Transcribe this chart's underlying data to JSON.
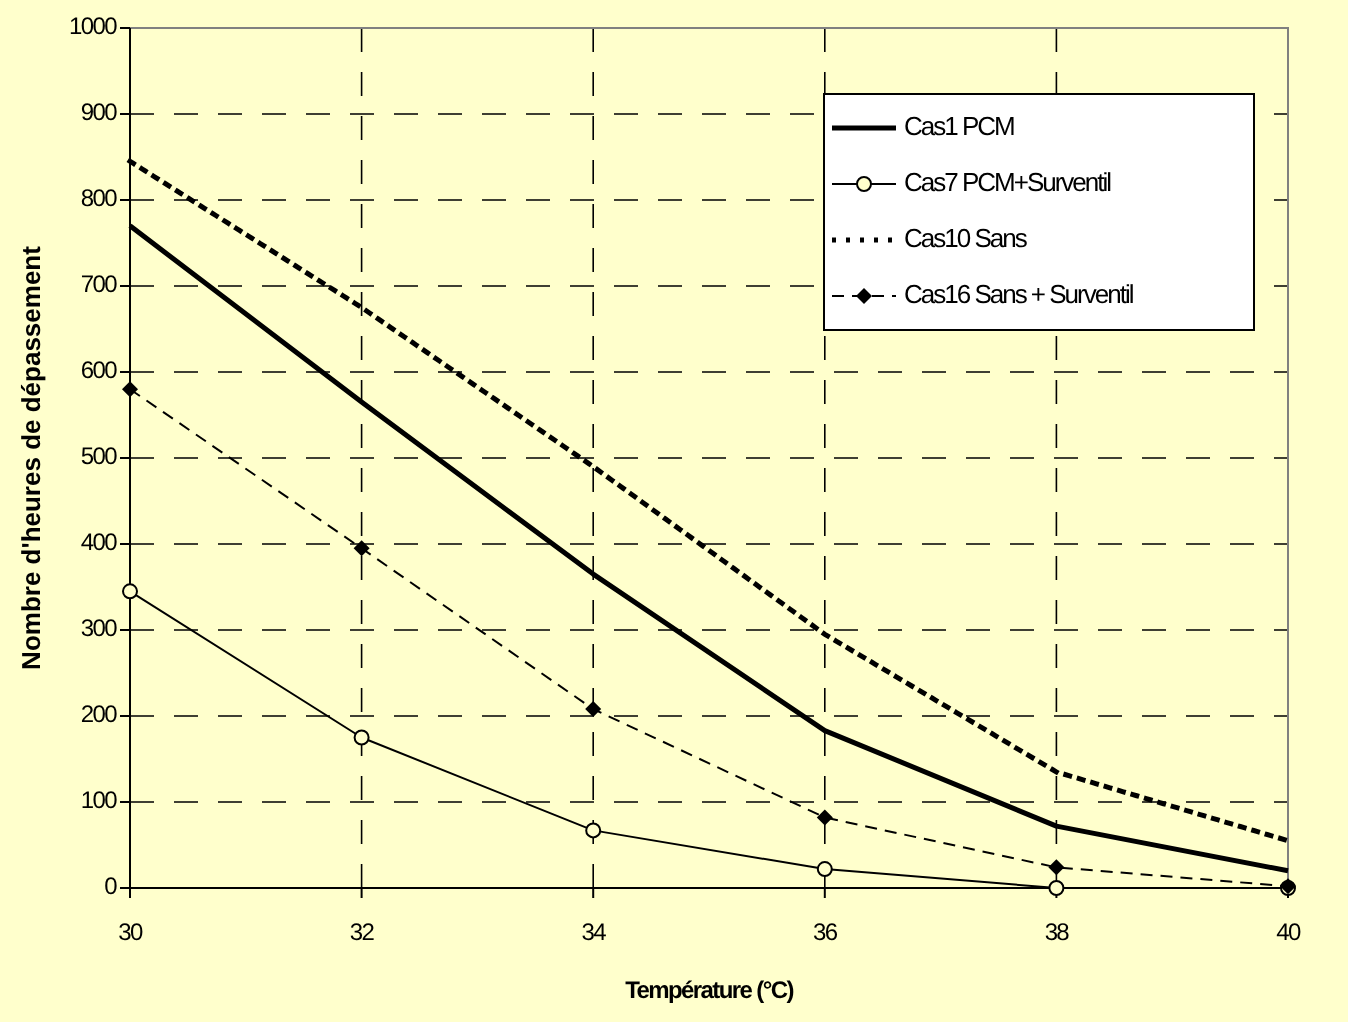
{
  "chart_data": {
    "type": "line",
    "xlabel": "Température (°C)",
    "ylabel": "Nombre d'heures de dépassement",
    "x": [
      30,
      32,
      34,
      36,
      38,
      40
    ],
    "xlim": [
      30,
      40
    ],
    "xticks": [
      30,
      32,
      34,
      36,
      38,
      40
    ],
    "ylim": [
      0,
      1000
    ],
    "yticks": [
      0,
      100,
      200,
      300,
      400,
      500,
      600,
      700,
      800,
      900,
      1000
    ],
    "grid": true,
    "legend": "top right",
    "series": [
      {
        "name": "Cas1 PCM",
        "color": "#000000",
        "values": [
          770,
          565,
          365,
          183,
          72,
          20
        ],
        "line_style": "solid",
        "marker": "none"
      },
      {
        "name": "Cas7 PCM+Surventil",
        "color": "#000000",
        "values": [
          345,
          175,
          67,
          22,
          0,
          0
        ],
        "line_style": "solid",
        "marker": "circle"
      },
      {
        "name": "Cas10 Sans",
        "color": "#000000",
        "values": [
          845,
          675,
          490,
          295,
          135,
          55
        ],
        "line_style": "dotted",
        "marker": "none"
      },
      {
        "name": "Cas16 Sans + Surventil",
        "color": "#000000",
        "values": [
          580,
          395,
          208,
          82,
          24,
          2
        ],
        "line_style": "dashed",
        "marker": "diamond"
      }
    ]
  }
}
